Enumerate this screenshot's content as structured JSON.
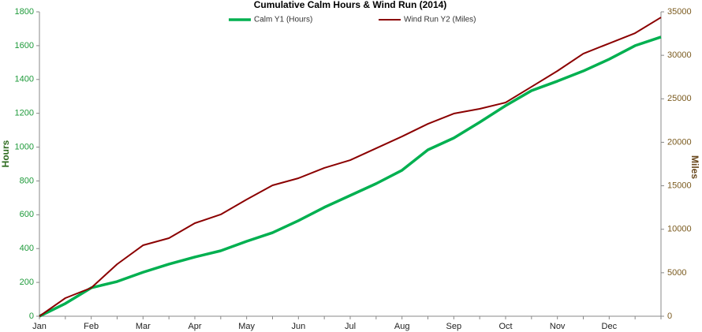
{
  "chart_data": {
    "type": "line",
    "title": "Cumulative Calm Hours & Wind Run (2014)",
    "categories": [
      "Jan",
      null,
      "Feb",
      null,
      "Mar",
      null,
      "Apr",
      null,
      "May",
      null,
      "Jun",
      null,
      "Jul",
      null,
      "Aug",
      null,
      "Sep",
      null,
      "Oct",
      null,
      "Nov",
      null,
      "Dec",
      null,
      null
    ],
    "series": [
      {
        "name": "Calm Y1 (Hours)",
        "color": "#00b050",
        "axis": "y",
        "values": [
          0,
          75,
          168,
          205,
          260,
          308,
          350,
          387,
          443,
          494,
          565,
          644,
          714,
          784,
          863,
          984,
          1054,
          1147,
          1245,
          1334,
          1390,
          1450,
          1520,
          1600,
          1651
        ]
      },
      {
        "name": "Wind Run Y2 (Miles)",
        "color": "#8b0000",
        "axis": "y2",
        "values": [
          0,
          2085,
          3264,
          5984,
          8160,
          8976,
          10700,
          11700,
          13420,
          15050,
          15870,
          17050,
          17950,
          19310,
          20670,
          22120,
          23300,
          23850,
          24570,
          26380,
          28200,
          30190,
          31370,
          32550,
          34360
        ]
      }
    ],
    "ylabel": "Hours",
    "y2label": "Miles",
    "ylim": [
      0,
      1800
    ],
    "yticks": [
      0,
      200,
      400,
      600,
      800,
      1000,
      1200,
      1400,
      1600,
      1800
    ],
    "y2lim": [
      0,
      35000
    ],
    "y2ticks": [
      0,
      5000,
      10000,
      15000,
      20000,
      25000,
      30000,
      35000
    ],
    "legend": "top"
  }
}
